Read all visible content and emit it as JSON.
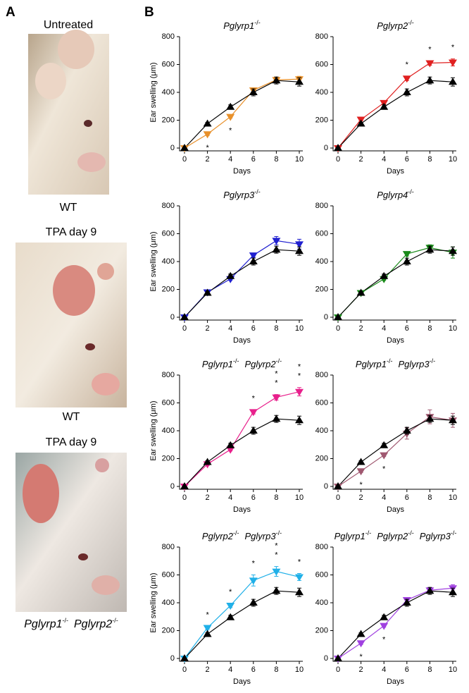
{
  "panel_a": {
    "label": "A",
    "photos": [
      {
        "title": "Untreated",
        "caption": "WT"
      },
      {
        "title": "TPA day 9",
        "caption": "WT"
      },
      {
        "title": "TPA day 9",
        "caption_parts": [
          [
            "Pglyrp1",
            "-/-"
          ],
          [
            "Pglyrp2",
            "-/-"
          ]
        ]
      }
    ]
  },
  "panel_b_label": "B",
  "chart_data": [
    {
      "type": "line",
      "title_parts": [
        [
          "Pglyrp1",
          "-/-"
        ]
      ],
      "x": [
        0,
        2,
        4,
        6,
        8,
        10
      ],
      "xlim": [
        0,
        10
      ],
      "xticks": [
        0,
        2,
        4,
        6,
        8,
        10
      ],
      "ylim": [
        0,
        800
      ],
      "yticks": [
        0,
        200,
        400,
        600,
        800
      ],
      "xlabel": "Days",
      "ylabel": "Ear swelling (μm)",
      "series": [
        {
          "color": "#000000",
          "marker": "up",
          "values": [
            0,
            175,
            295,
            400,
            485,
            475
          ],
          "errors": [
            0,
            10,
            15,
            25,
            25,
            30
          ]
        },
        {
          "color": "#e8902a",
          "marker": "down",
          "values": [
            0,
            100,
            225,
            415,
            490,
            495
          ],
          "errors": [
            0,
            10,
            10,
            15,
            20,
            20
          ]
        }
      ],
      "annotations": [
        {
          "x": 2,
          "marks": [
            "*"
          ]
        },
        {
          "x": 4,
          "marks": [
            "*"
          ]
        }
      ]
    },
    {
      "type": "line",
      "title_parts": [
        [
          "Pglyrp2",
          "-/-"
        ]
      ],
      "x": [
        0,
        2,
        4,
        6,
        8,
        10
      ],
      "xlim": [
        0,
        10
      ],
      "xticks": [
        0,
        2,
        4,
        6,
        8,
        10
      ],
      "ylim": [
        0,
        800
      ],
      "yticks": [
        0,
        200,
        400,
        600,
        800
      ],
      "xlabel": "Days",
      "series": [
        {
          "color": "#000000",
          "marker": "up",
          "values": [
            0,
            175,
            295,
            400,
            485,
            475
          ],
          "errors": [
            0,
            10,
            15,
            25,
            25,
            30
          ]
        },
        {
          "color": "#e02020",
          "marker": "down",
          "values": [
            0,
            205,
            325,
            500,
            610,
            615
          ],
          "errors": [
            0,
            10,
            10,
            15,
            15,
            25
          ]
        }
      ],
      "annotations": [
        {
          "x": 6,
          "marks": [
            "*"
          ]
        },
        {
          "x": 8,
          "marks": [
            "*"
          ]
        },
        {
          "x": 10,
          "marks": [
            "*"
          ]
        }
      ]
    },
    {
      "type": "line",
      "title_parts": [
        [
          "Pglyrp3",
          "-/-"
        ]
      ],
      "x": [
        0,
        2,
        4,
        6,
        8,
        10
      ],
      "xlim": [
        0,
        10
      ],
      "xticks": [
        0,
        2,
        4,
        6,
        8,
        10
      ],
      "ylim": [
        0,
        800
      ],
      "yticks": [
        0,
        200,
        400,
        600,
        800
      ],
      "xlabel": "Days",
      "ylabel": "Ear swelling (μm)",
      "series": [
        {
          "color": "#000000",
          "marker": "up",
          "values": [
            0,
            175,
            295,
            400,
            485,
            475
          ],
          "errors": [
            0,
            10,
            15,
            25,
            25,
            30
          ]
        },
        {
          "color": "#2020d0",
          "marker": "down",
          "values": [
            0,
            180,
            275,
            445,
            550,
            525
          ],
          "errors": [
            0,
            10,
            10,
            15,
            30,
            35
          ]
        }
      ],
      "annotations": []
    },
    {
      "type": "line",
      "title_parts": [
        [
          "Pglyrp4",
          "-/-"
        ]
      ],
      "x": [
        0,
        2,
        4,
        6,
        8,
        10
      ],
      "xlim": [
        0,
        10
      ],
      "xticks": [
        0,
        2,
        4,
        6,
        8,
        10
      ],
      "ylim": [
        0,
        800
      ],
      "yticks": [
        0,
        200,
        400,
        600,
        800
      ],
      "xlabel": "Days",
      "series": [
        {
          "color": "#000000",
          "marker": "up",
          "values": [
            0,
            175,
            295,
            400,
            485,
            475
          ],
          "errors": [
            0,
            10,
            15,
            25,
            25,
            30
          ]
        },
        {
          "color": "#1a8a1a",
          "marker": "down",
          "values": [
            0,
            175,
            275,
            455,
            500,
            465
          ],
          "errors": [
            0,
            10,
            10,
            15,
            20,
            40
          ]
        }
      ],
      "annotations": []
    },
    {
      "type": "line",
      "title_parts": [
        [
          "Pglyrp1",
          "-/-"
        ],
        [
          "Pglyrp2",
          "-/-"
        ]
      ],
      "x": [
        0,
        2,
        4,
        6,
        8,
        10
      ],
      "xlim": [
        0,
        10
      ],
      "xticks": [
        0,
        2,
        4,
        6,
        8,
        10
      ],
      "ylim": [
        0,
        800
      ],
      "yticks": [
        0,
        200,
        400,
        600,
        800
      ],
      "xlabel": "Days",
      "ylabel": "Ear swelling (μm)",
      "series": [
        {
          "color": "#000000",
          "marker": "up",
          "values": [
            0,
            175,
            295,
            400,
            485,
            475
          ],
          "errors": [
            0,
            10,
            15,
            25,
            25,
            30
          ]
        },
        {
          "color": "#e8208c",
          "marker": "down",
          "values": [
            0,
            160,
            265,
            535,
            640,
            680
          ],
          "errors": [
            0,
            10,
            10,
            15,
            20,
            30
          ]
        }
      ],
      "annotations": [
        {
          "x": 6,
          "marks": [
            "*"
          ]
        },
        {
          "x": 8,
          "marks": [
            "*",
            "*"
          ]
        },
        {
          "x": 10,
          "marks": [
            "*",
            "*"
          ]
        }
      ]
    },
    {
      "type": "line",
      "title_parts": [
        [
          "Pglyrp1",
          "-/-"
        ],
        [
          "Pglyrp3",
          "-/-"
        ]
      ],
      "x": [
        0,
        2,
        4,
        6,
        8,
        10
      ],
      "xlim": [
        0,
        10
      ],
      "xticks": [
        0,
        2,
        4,
        6,
        8,
        10
      ],
      "ylim": [
        0,
        800
      ],
      "yticks": [
        0,
        200,
        400,
        600,
        800
      ],
      "xlabel": "Days",
      "series": [
        {
          "color": "#000000",
          "marker": "up",
          "values": [
            0,
            175,
            295,
            400,
            485,
            475
          ],
          "errors": [
            0,
            10,
            15,
            25,
            25,
            30
          ]
        },
        {
          "color": "#a05870",
          "marker": "down",
          "values": [
            0,
            110,
            225,
            380,
            500,
            475
          ],
          "errors": [
            0,
            10,
            10,
            40,
            50,
            50
          ]
        }
      ],
      "annotations": [
        {
          "x": 2,
          "marks": [
            "*"
          ]
        },
        {
          "x": 4,
          "marks": [
            "*"
          ]
        }
      ]
    },
    {
      "type": "line",
      "title_parts": [
        [
          "Pglyrp2",
          "-/-"
        ],
        [
          "Pglyrp3",
          "-/-"
        ]
      ],
      "x": [
        0,
        2,
        4,
        6,
        8,
        10
      ],
      "xlim": [
        0,
        10
      ],
      "xticks": [
        0,
        2,
        4,
        6,
        8,
        10
      ],
      "ylim": [
        0,
        800
      ],
      "yticks": [
        0,
        200,
        400,
        600,
        800
      ],
      "xlabel": "Days",
      "ylabel": "Ear swelling (μm)",
      "series": [
        {
          "color": "#000000",
          "marker": "up",
          "values": [
            0,
            175,
            295,
            400,
            485,
            475
          ],
          "errors": [
            0,
            10,
            15,
            25,
            25,
            30
          ]
        },
        {
          "color": "#20b0e8",
          "marker": "down",
          "values": [
            0,
            220,
            380,
            560,
            625,
            585
          ],
          "errors": [
            0,
            10,
            15,
            40,
            35,
            25
          ]
        }
      ],
      "annotations": [
        {
          "x": 2,
          "marks": [
            "*"
          ]
        },
        {
          "x": 4,
          "marks": [
            "*"
          ]
        },
        {
          "x": 6,
          "marks": [
            "*"
          ]
        },
        {
          "x": 8,
          "marks": [
            "*",
            "*"
          ]
        },
        {
          "x": 10,
          "marks": [
            "*"
          ]
        }
      ]
    },
    {
      "type": "line",
      "title_parts": [
        [
          "Pglyrp1",
          "-/-"
        ],
        [
          "Pglyrp2",
          "-/-"
        ],
        [
          "Pglyrp3",
          "-/-"
        ]
      ],
      "x": [
        0,
        2,
        4,
        6,
        8,
        10
      ],
      "xlim": [
        0,
        10
      ],
      "xticks": [
        0,
        2,
        4,
        6,
        8,
        10
      ],
      "ylim": [
        0,
        800
      ],
      "yticks": [
        0,
        200,
        400,
        600,
        800
      ],
      "xlabel": "Days",
      "series": [
        {
          "color": "#000000",
          "marker": "up",
          "values": [
            0,
            175,
            295,
            400,
            485,
            475
          ],
          "errors": [
            0,
            10,
            15,
            25,
            25,
            30
          ]
        },
        {
          "color": "#a040e0",
          "marker": "down",
          "values": [
            0,
            110,
            235,
            420,
            490,
            505
          ],
          "errors": [
            0,
            10,
            10,
            15,
            20,
            25
          ]
        }
      ],
      "annotations": [
        {
          "x": 2,
          "marks": [
            "*"
          ]
        },
        {
          "x": 4,
          "marks": [
            "*"
          ]
        }
      ]
    }
  ]
}
